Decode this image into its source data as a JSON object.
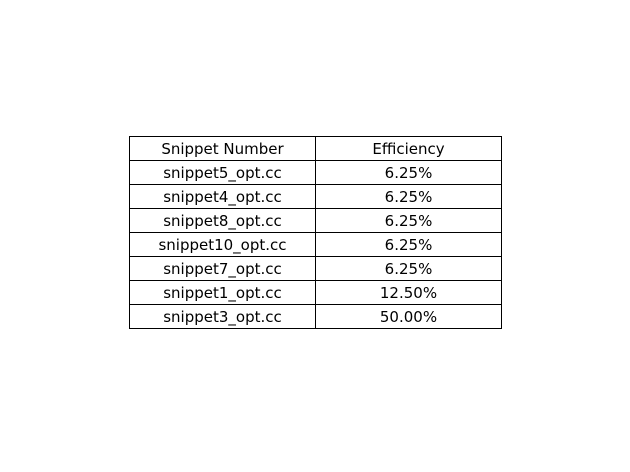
{
  "chart_data": {
    "type": "table",
    "columns": [
      "Snippet Number",
      "Efficiency"
    ],
    "rows": [
      [
        "snippet5_opt.cc",
        "6.25%"
      ],
      [
        "snippet4_opt.cc",
        "6.25%"
      ],
      [
        "snippet8_opt.cc",
        "6.25%"
      ],
      [
        "snippet10_opt.cc",
        "6.25%"
      ],
      [
        "snippet7_opt.cc",
        "6.25%"
      ],
      [
        "snippet1_opt.cc",
        "12.50%"
      ],
      [
        "snippet3_opt.cc",
        "50.00%"
      ]
    ]
  }
}
